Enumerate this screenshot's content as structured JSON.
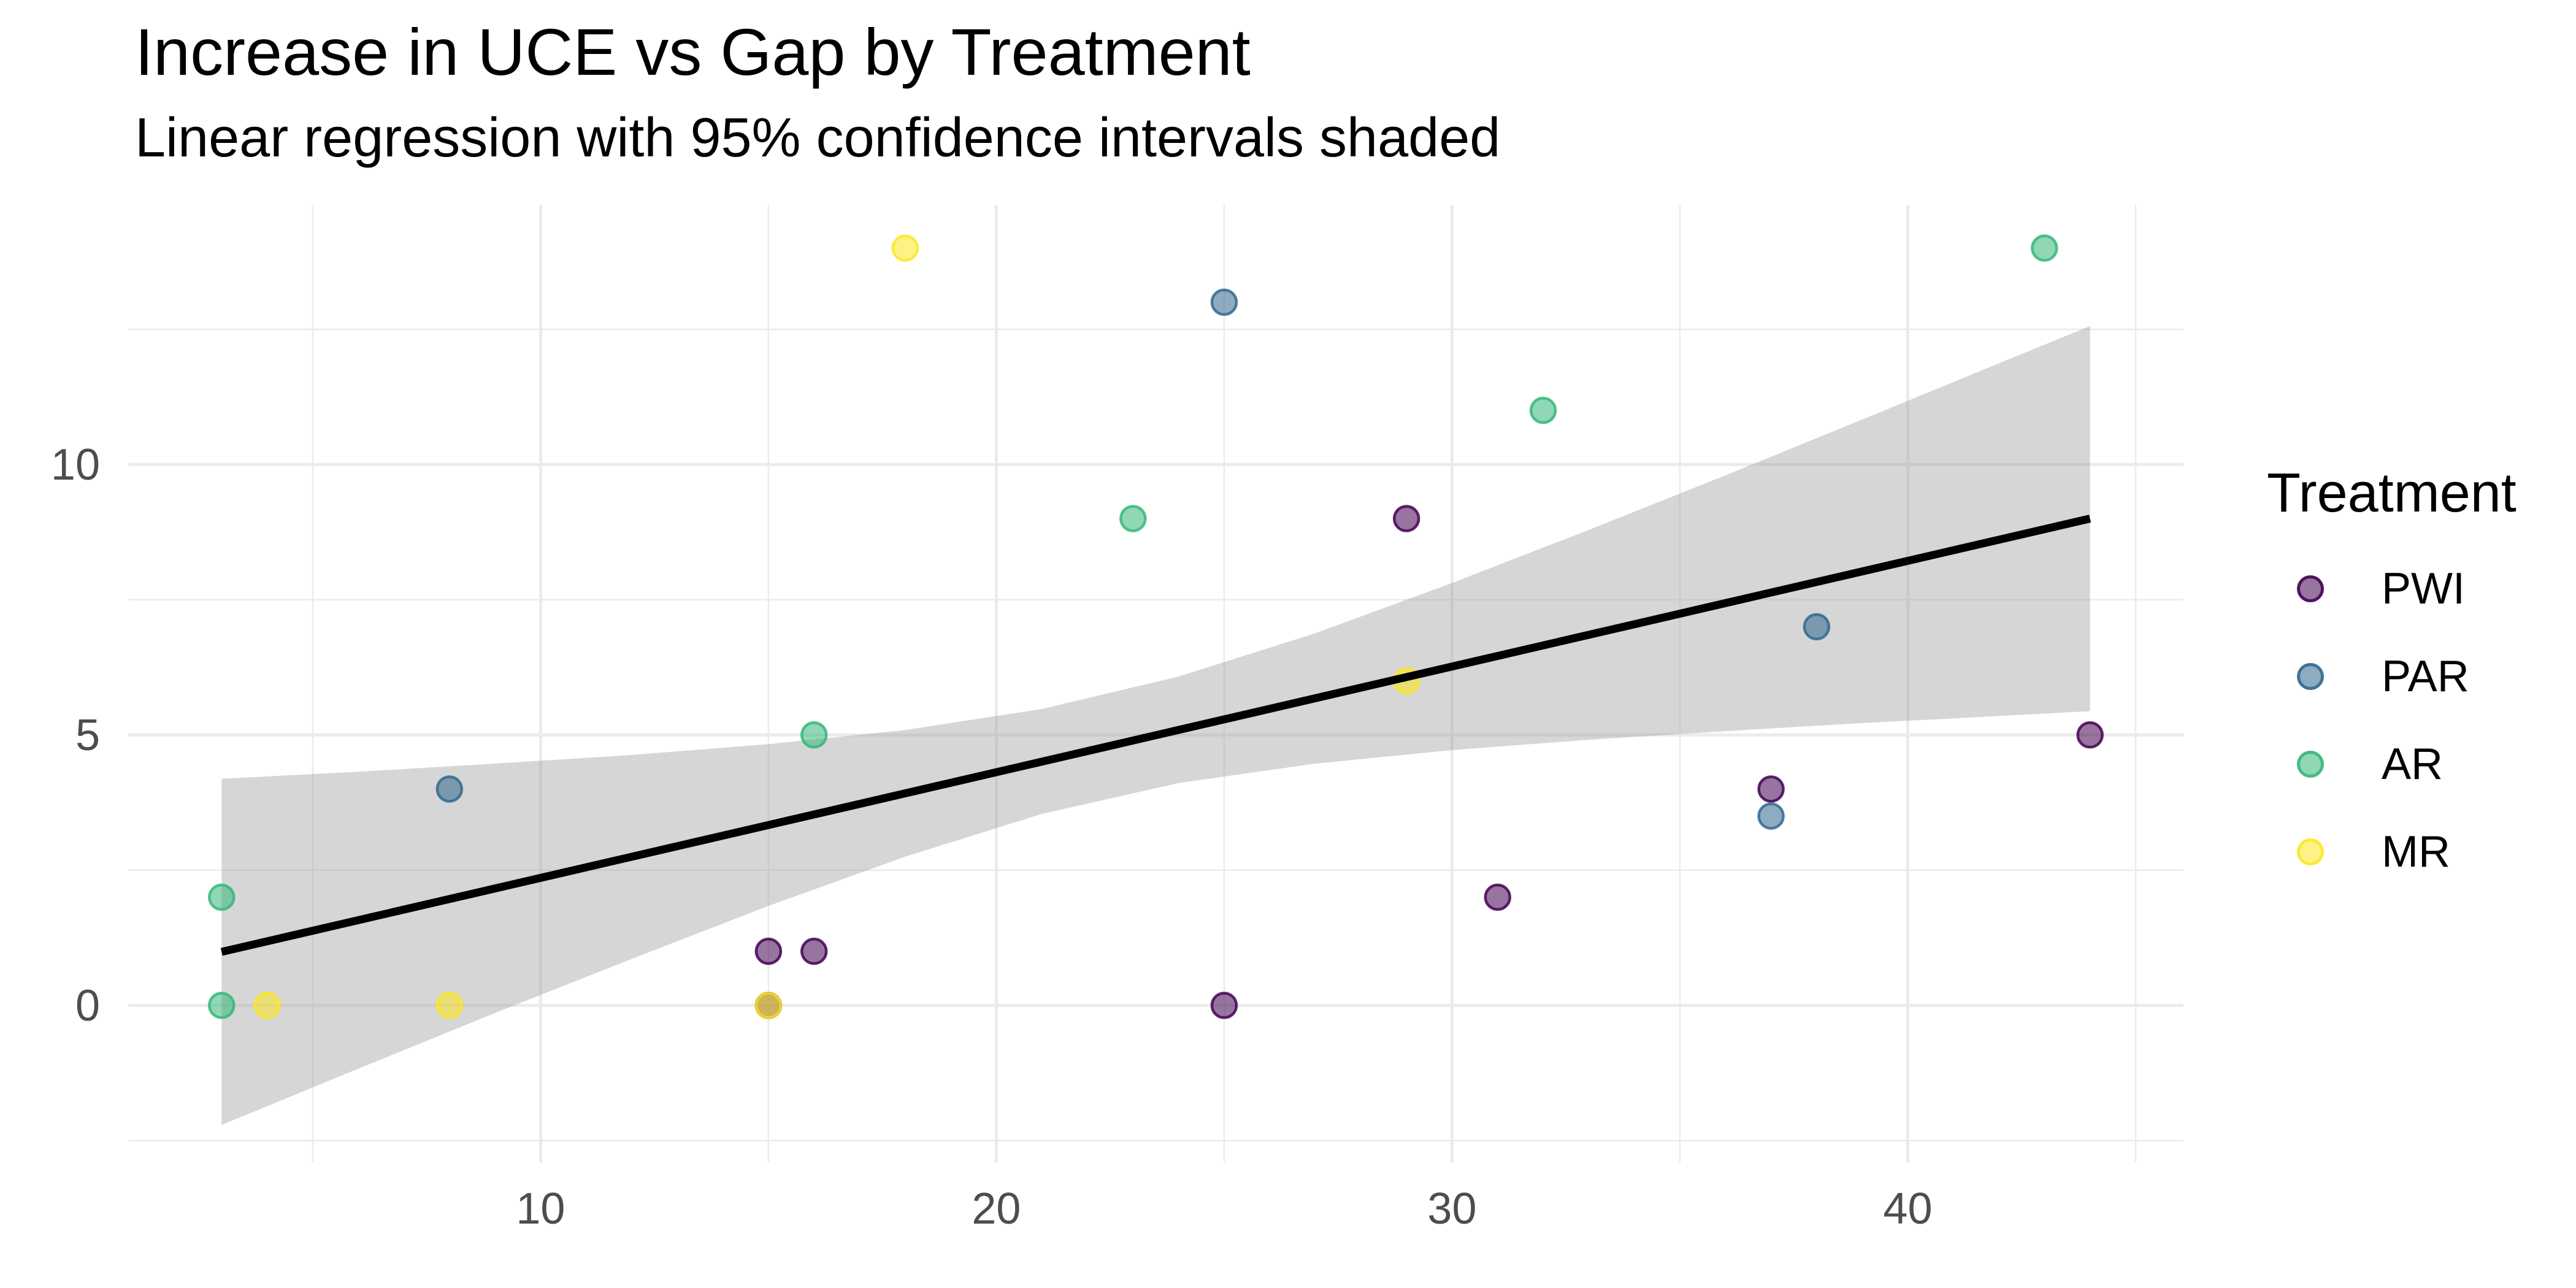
{
  "chart_data": {
    "type": "scatter",
    "title": "Increase in UCE vs Gap by Treatment",
    "subtitle": "Linear regression with 95% confidence intervals shaded",
    "legend_title": "Treatment",
    "xlim": [
      0.95,
      46.05
    ],
    "ylim": [
      -2.9,
      14.8
    ],
    "x_major_ticks": [
      10,
      20,
      30,
      40
    ],
    "x_minor_ticks": [
      5,
      15,
      25,
      35,
      45
    ],
    "y_major_ticks": [
      0,
      5,
      10
    ],
    "y_minor_ticks": [
      -2.5,
      2.5,
      7.5,
      12.5
    ],
    "grid": {
      "on": true,
      "color": "#ebebeb"
    },
    "axis_text_color": "#4d4d4d",
    "legend_position": "right",
    "point_style": {
      "fill_alpha": 0.55,
      "stroke_alpha": 0.85
    },
    "series": [
      {
        "name": "PWI",
        "color": "#440154",
        "points": [
          [
            15,
            0
          ],
          [
            15,
            1
          ],
          [
            16,
            1
          ],
          [
            25,
            0
          ],
          [
            29,
            9
          ],
          [
            31,
            2
          ],
          [
            37,
            4
          ],
          [
            44,
            5
          ]
        ]
      },
      {
        "name": "PAR",
        "color": "#31688e",
        "points": [
          [
            8,
            4
          ],
          [
            25,
            13
          ],
          [
            37,
            3.5
          ],
          [
            38,
            7
          ]
        ]
      },
      {
        "name": "AR",
        "color": "#35b779",
        "points": [
          [
            3,
            0
          ],
          [
            3,
            2
          ],
          [
            16,
            5
          ],
          [
            23,
            9
          ],
          [
            32,
            11
          ],
          [
            43,
            14
          ]
        ]
      },
      {
        "name": "MR",
        "color": "#fde725",
        "points": [
          [
            4,
            0
          ],
          [
            8,
            0
          ],
          [
            15,
            0
          ],
          [
            18,
            14
          ],
          [
            29,
            6
          ]
        ]
      }
    ],
    "regression_line": {
      "color": "#000000",
      "x0": 3,
      "y0": 0.99,
      "x1": 44,
      "y1": 9.0
    },
    "ci_band": {
      "color": "rgba(153,153,153,0.4)",
      "x": [
        3,
        6,
        9,
        12,
        15,
        18,
        21,
        24,
        27,
        30,
        33,
        36,
        39,
        42,
        44
      ],
      "upper": [
        4.19,
        4.32,
        4.47,
        4.63,
        4.83,
        5.09,
        5.48,
        6.08,
        6.88,
        7.81,
        8.79,
        9.8,
        10.83,
        11.87,
        12.56
      ],
      "lower": [
        -2.21,
        -1.17,
        -0.14,
        0.86,
        1.84,
        2.75,
        3.54,
        4.11,
        4.47,
        4.72,
        4.91,
        5.07,
        5.22,
        5.35,
        5.44
      ]
    }
  }
}
